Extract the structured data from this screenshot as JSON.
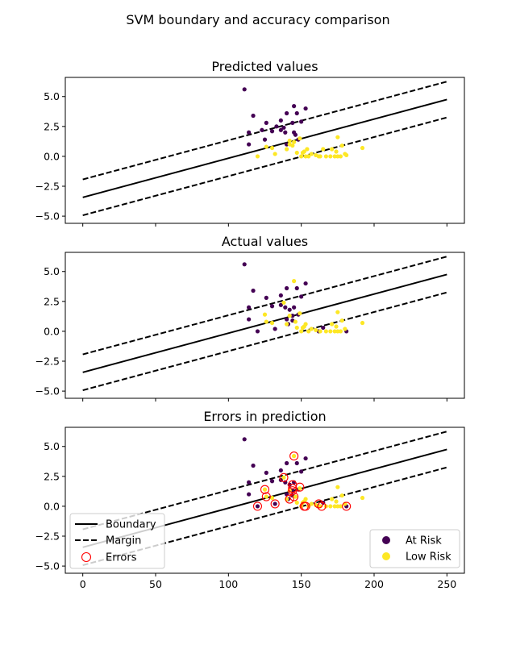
{
  "suptitle": "SVM boundary and accuracy comparison",
  "colors": {
    "at_risk": "#440154",
    "low_risk": "#fde725",
    "error_ring": "#ff0000",
    "line": "#000000"
  },
  "chart_data": [
    {
      "type": "scatter",
      "title": "Predicted values",
      "xlim": [
        -12,
        262
      ],
      "ylim": [
        -5.6,
        6.6
      ],
      "xticks": [
        0,
        50,
        100,
        150,
        200,
        250
      ],
      "yticks": [
        -5.0,
        -2.5,
        0.0,
        2.5,
        5.0
      ],
      "show_xticklabels": false,
      "boundary": {
        "x": [
          0,
          250
        ],
        "y": [
          -3.43,
          4.75
        ]
      },
      "margins": [
        {
          "x": [
            0,
            250
          ],
          "y": [
            -1.93,
            6.25
          ]
        },
        {
          "x": [
            0,
            250
          ],
          "y": [
            -4.93,
            3.25
          ]
        }
      ],
      "series": [
        {
          "class": "at_risk",
          "points": [
            [
              111,
              5.6
            ],
            [
              117,
              3.4
            ],
            [
              114,
              2.0
            ],
            [
              114,
              1.0
            ],
            [
              123,
              2.2
            ],
            [
              125,
              1.4
            ],
            [
              126,
              2.8
            ],
            [
              130,
              2.1
            ],
            [
              133,
              2.5
            ],
            [
              136,
              3.0
            ],
            [
              138,
              2.4
            ],
            [
              139,
              2.0
            ],
            [
              140,
              3.6
            ],
            [
              144,
              2.8
            ],
            [
              145,
              4.2
            ],
            [
              145,
              2.0
            ],
            [
              147,
              3.6
            ],
            [
              146,
              1.8
            ],
            [
              148,
              1.4
            ],
            [
              150,
              2.9
            ],
            [
              153,
              4.0
            ],
            [
              140,
              1.0
            ],
            [
              136,
              2.2
            ]
          ]
        },
        {
          "class": "low_risk",
          "points": [
            [
              120,
              0.0
            ],
            [
              126,
              0.8
            ],
            [
              130,
              0.7
            ],
            [
              132,
              0.2
            ],
            [
              140,
              0.6
            ],
            [
              142,
              1.3
            ],
            [
              144,
              0.9
            ],
            [
              145,
              1.2
            ],
            [
              147,
              0.3
            ],
            [
              149,
              1.5
            ],
            [
              150,
              0.0
            ],
            [
              151,
              0.3
            ],
            [
              152,
              0.4
            ],
            [
              153,
              0.0
            ],
            [
              154,
              0.6
            ],
            [
              155,
              0.0
            ],
            [
              157,
              0.2
            ],
            [
              160,
              0.1
            ],
            [
              162,
              0.0
            ],
            [
              163,
              0.0
            ],
            [
              165,
              0.6
            ],
            [
              167,
              0.0
            ],
            [
              170,
              0.0
            ],
            [
              171,
              0.6
            ],
            [
              173,
              0.0
            ],
            [
              174,
              0.4
            ],
            [
              175,
              0.0
            ],
            [
              175,
              1.6
            ],
            [
              177,
              0.0
            ],
            [
              178,
              0.9
            ],
            [
              180,
              0.2
            ],
            [
              181,
              0.1
            ],
            [
              192,
              0.7
            ],
            [
              142,
              1.0
            ]
          ]
        }
      ]
    },
    {
      "type": "scatter",
      "title": "Actual values",
      "xlim": [
        -12,
        262
      ],
      "ylim": [
        -5.6,
        6.6
      ],
      "xticks": [
        0,
        50,
        100,
        150,
        200,
        250
      ],
      "yticks": [
        -5.0,
        -2.5,
        0.0,
        2.5,
        5.0
      ],
      "show_xticklabels": false,
      "boundary": {
        "x": [
          0,
          250
        ],
        "y": [
          -3.43,
          4.75
        ]
      },
      "margins": [
        {
          "x": [
            0,
            250
          ],
          "y": [
            -1.93,
            6.25
          ]
        },
        {
          "x": [
            0,
            250
          ],
          "y": [
            -4.93,
            3.25
          ]
        }
      ],
      "series": [
        {
          "class": "at_risk",
          "points": [
            [
              111,
              5.6
            ],
            [
              117,
              3.4
            ],
            [
              114,
              2.0
            ],
            [
              114,
              1.0
            ],
            [
              120,
              0.0
            ],
            [
              126,
              2.8
            ],
            [
              130,
              2.1
            ],
            [
              132,
              0.2
            ],
            [
              136,
              3.0
            ],
            [
              139,
              2.0
            ],
            [
              140,
              3.6
            ],
            [
              141,
              0.6
            ],
            [
              142,
              1.8
            ],
            [
              144,
              1.3
            ],
            [
              144,
              0.9
            ],
            [
              145,
              2.0
            ],
            [
              147,
              3.6
            ],
            [
              148,
              1.4
            ],
            [
              150,
              2.9
            ],
            [
              153,
              4.0
            ],
            [
              162,
              0.0
            ],
            [
              165,
              0.3
            ],
            [
              181,
              0.0
            ],
            [
              136,
              2.2
            ],
            [
              140,
              1.0
            ]
          ]
        },
        {
          "class": "low_risk",
          "points": [
            [
              125,
              1.4
            ],
            [
              126,
              0.8
            ],
            [
              130,
              0.7
            ],
            [
              138,
              2.4
            ],
            [
              140,
              0.6
            ],
            [
              142,
              1.3
            ],
            [
              145,
              4.2
            ],
            [
              147,
              0.3
            ],
            [
              149,
              1.5
            ],
            [
              150,
              0.0
            ],
            [
              151,
              0.3
            ],
            [
              152,
              0.4
            ],
            [
              153,
              0.6
            ],
            [
              155,
              0.0
            ],
            [
              157,
              0.2
            ],
            [
              160,
              0.1
            ],
            [
              163,
              0.0
            ],
            [
              167,
              0.0
            ],
            [
              170,
              0.0
            ],
            [
              171,
              0.6
            ],
            [
              173,
              0.0
            ],
            [
              174,
              0.4
            ],
            [
              175,
              0.0
            ],
            [
              175,
              1.6
            ],
            [
              177,
              0.0
            ],
            [
              178,
              0.9
            ],
            [
              180,
              0.2
            ],
            [
              192,
              0.7
            ],
            [
              146,
              0.8
            ]
          ]
        }
      ]
    },
    {
      "type": "scatter",
      "title": "Errors in prediction",
      "xlim": [
        -12,
        262
      ],
      "ylim": [
        -5.6,
        6.6
      ],
      "xticks": [
        0,
        50,
        100,
        150,
        200,
        250
      ],
      "yticks": [
        -5.0,
        -2.5,
        0.0,
        2.5,
        5.0
      ],
      "show_xticklabels": true,
      "boundary": {
        "x": [
          0,
          250
        ],
        "y": [
          -3.43,
          4.75
        ]
      },
      "margins": [
        {
          "x": [
            0,
            250
          ],
          "y": [
            -1.93,
            6.25
          ]
        },
        {
          "x": [
            0,
            250
          ],
          "y": [
            -4.93,
            3.25
          ]
        }
      ],
      "series": [
        {
          "class": "at_risk",
          "points": [
            [
              111,
              5.6
            ],
            [
              117,
              3.4
            ],
            [
              114,
              2.0
            ],
            [
              114,
              1.0
            ],
            [
              120,
              0.0
            ],
            [
              126,
              2.8
            ],
            [
              130,
              2.1
            ],
            [
              132,
              0.2
            ],
            [
              136,
              3.0
            ],
            [
              139,
              2.0
            ],
            [
              140,
              3.6
            ],
            [
              141,
              0.6
            ],
            [
              142,
              1.8
            ],
            [
              144,
              1.3
            ],
            [
              144,
              0.9
            ],
            [
              145,
              2.0
            ],
            [
              147,
              3.6
            ],
            [
              148,
              1.4
            ],
            [
              150,
              2.9
            ],
            [
              153,
              4.0
            ],
            [
              162,
              0.0
            ],
            [
              165,
              0.3
            ],
            [
              181,
              0.0
            ],
            [
              136,
              2.2
            ],
            [
              140,
              1.0
            ]
          ]
        },
        {
          "class": "low_risk",
          "points": [
            [
              125,
              1.4
            ],
            [
              126,
              0.8
            ],
            [
              130,
              0.7
            ],
            [
              138,
              2.4
            ],
            [
              140,
              0.6
            ],
            [
              142,
              1.3
            ],
            [
              145,
              4.2
            ],
            [
              147,
              0.3
            ],
            [
              149,
              1.5
            ],
            [
              150,
              0.0
            ],
            [
              151,
              0.3
            ],
            [
              152,
              0.4
            ],
            [
              153,
              0.6
            ],
            [
              155,
              0.0
            ],
            [
              157,
              0.2
            ],
            [
              160,
              0.1
            ],
            [
              163,
              0.0
            ],
            [
              167,
              0.0
            ],
            [
              170,
              0.0
            ],
            [
              171,
              0.6
            ],
            [
              173,
              0.0
            ],
            [
              174,
              0.4
            ],
            [
              175,
              0.0
            ],
            [
              175,
              1.6
            ],
            [
              177,
              0.0
            ],
            [
              178,
              0.9
            ],
            [
              180,
              0.2
            ],
            [
              192,
              0.7
            ],
            [
              146,
              0.8
            ]
          ]
        }
      ],
      "errors": [
        [
          145,
          4.2
        ],
        [
          138,
          2.4
        ],
        [
          125,
          1.4
        ],
        [
          144,
          1.8
        ],
        [
          144,
          1.5
        ],
        [
          144,
          1.3
        ],
        [
          149,
          1.6
        ],
        [
          126,
          0.8
        ],
        [
          142,
          0.6
        ],
        [
          145,
          0.8
        ],
        [
          120,
          0.0
        ],
        [
          132,
          0.2
        ],
        [
          152,
          0.0
        ],
        [
          153,
          0.0
        ],
        [
          162,
          0.2
        ],
        [
          164,
          0.0
        ],
        [
          181,
          0.0
        ]
      ],
      "legend_lines": {
        "location": "lower left",
        "entries": [
          "Boundary",
          "Margin",
          "Errors"
        ]
      },
      "legend_classes": {
        "location": "lower right",
        "entries": [
          "At Risk",
          "Low Risk"
        ]
      }
    }
  ]
}
